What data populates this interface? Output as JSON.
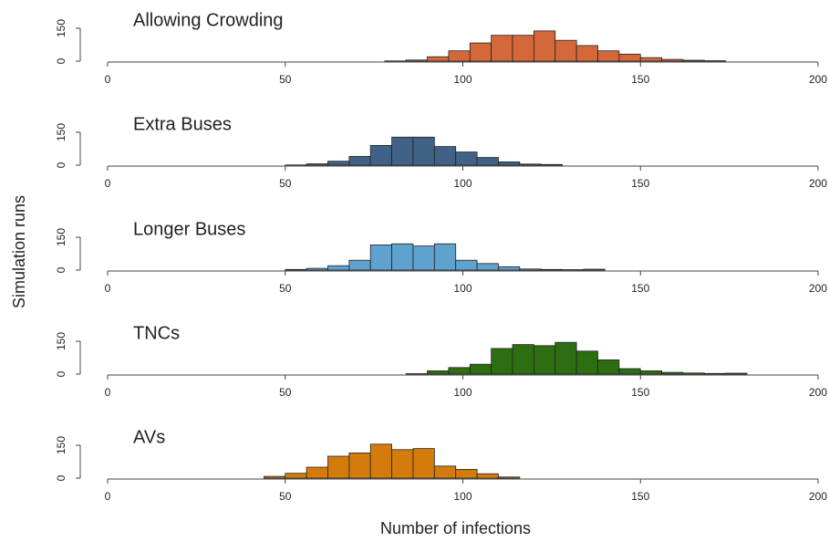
{
  "chart_data": [
    {
      "type": "histogram",
      "title": "Allowing Crowding",
      "color": "#d4683a",
      "bins": [
        78,
        84,
        90,
        96,
        102,
        108,
        114,
        120,
        126,
        132,
        138,
        144,
        150,
        156,
        162,
        168,
        174
      ],
      "values": [
        1,
        5,
        20,
        47,
        83,
        118,
        118,
        138,
        95,
        71,
        47,
        32,
        16,
        8,
        4,
        2
      ],
      "xlim": [
        0,
        200
      ],
      "xticks": [
        0,
        50,
        100,
        150,
        200
      ],
      "ylim": [
        0,
        160
      ],
      "yticks": [
        0,
        150
      ]
    },
    {
      "type": "histogram",
      "title": "Extra Buses",
      "color": "#3f6286",
      "bins": [
        50,
        56,
        62,
        68,
        74,
        80,
        86,
        92,
        98,
        104,
        110,
        116,
        122,
        128
      ],
      "values": [
        1,
        6,
        18,
        40,
        90,
        128,
        128,
        85,
        60,
        35,
        15,
        5,
        3
      ],
      "xlim": [
        0,
        200
      ],
      "xticks": [
        0,
        50,
        100,
        150,
        200
      ],
      "ylim": [
        0,
        160
      ],
      "yticks": [
        0,
        150
      ]
    },
    {
      "type": "histogram",
      "title": "Longer Buses",
      "color": "#5fa1cf",
      "y_label": "Simulation runs",
      "bins": [
        50,
        56,
        62,
        68,
        74,
        80,
        86,
        92,
        98,
        104,
        110,
        116,
        122,
        128,
        134,
        140
      ],
      "values": [
        3,
        8,
        20,
        45,
        115,
        120,
        110,
        120,
        45,
        30,
        15,
        5,
        3,
        2,
        4
      ],
      "xlim": [
        0,
        200
      ],
      "xticks": [
        0,
        50,
        100,
        150,
        200
      ],
      "ylim": [
        0,
        160
      ],
      "yticks": [
        0,
        150
      ]
    },
    {
      "type": "histogram",
      "title": "TNCs",
      "color": "#2d6e12",
      "bins": [
        84,
        90,
        96,
        102,
        108,
        114,
        120,
        126,
        132,
        138,
        144,
        150,
        156,
        162,
        168,
        174,
        180
      ],
      "values": [
        2,
        15,
        30,
        45,
        117,
        135,
        130,
        145,
        105,
        65,
        25,
        15,
        8,
        5,
        3,
        4
      ],
      "xlim": [
        0,
        200
      ],
      "xticks": [
        0,
        50,
        100,
        150,
        200
      ],
      "ylim": [
        0,
        160
      ],
      "yticks": [
        0,
        150
      ]
    },
    {
      "type": "histogram",
      "title": "AVs",
      "color": "#d47c0b",
      "x_label": "Number of infections",
      "bins": [
        44,
        50,
        56,
        62,
        68,
        74,
        80,
        86,
        92,
        98,
        104,
        110,
        116
      ],
      "values": [
        8,
        22,
        50,
        100,
        115,
        155,
        130,
        135,
        55,
        40,
        20,
        5
      ],
      "xlim": [
        0,
        200
      ],
      "xticks": [
        0,
        50,
        100,
        150,
        200
      ],
      "ylim": [
        0,
        160
      ],
      "yticks": [
        0,
        150
      ]
    }
  ]
}
